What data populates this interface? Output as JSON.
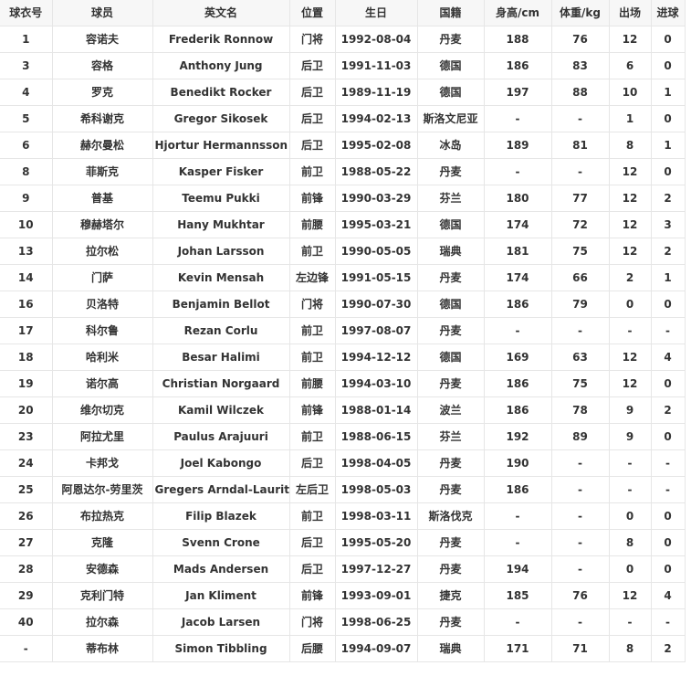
{
  "colors": {
    "page_background": "#ffffff",
    "header_background": "#f7f7f7",
    "border": "#e6e6e6",
    "text": "#333333"
  },
  "roster_table": {
    "headers": [
      "球衣号",
      "球员",
      "英文名",
      "位置",
      "生日",
      "国籍",
      "身高/cm",
      "体重/kg",
      "出场",
      "进球"
    ],
    "rows": [
      [
        "1",
        "容诺夫",
        "Frederik Ronnow",
        "门将",
        "1992-08-04",
        "丹麦",
        "188",
        "76",
        "12",
        "0"
      ],
      [
        "3",
        "容格",
        "Anthony Jung",
        "后卫",
        "1991-11-03",
        "德国",
        "186",
        "83",
        "6",
        "0"
      ],
      [
        "4",
        "罗克",
        "Benedikt Rocker",
        "后卫",
        "1989-11-19",
        "德国",
        "197",
        "88",
        "10",
        "1"
      ],
      [
        "5",
        "希科谢克",
        "Gregor Sikosek",
        "后卫",
        "1994-02-13",
        "斯洛文尼亚",
        "-",
        "-",
        "1",
        "0"
      ],
      [
        "6",
        "赫尔曼松",
        "Hjortur Hermannsson",
        "后卫",
        "1995-02-08",
        "冰岛",
        "189",
        "81",
        "8",
        "1"
      ],
      [
        "8",
        "菲斯克",
        "Kasper Fisker",
        "前卫",
        "1988-05-22",
        "丹麦",
        "-",
        "-",
        "12",
        "0"
      ],
      [
        "9",
        "普基",
        "Teemu Pukki",
        "前锋",
        "1990-03-29",
        "芬兰",
        "180",
        "77",
        "12",
        "2"
      ],
      [
        "10",
        "穆赫塔尔",
        "Hany Mukhtar",
        "前腰",
        "1995-03-21",
        "德国",
        "174",
        "72",
        "12",
        "3"
      ],
      [
        "13",
        "拉尔松",
        "Johan Larsson",
        "前卫",
        "1990-05-05",
        "瑞典",
        "181",
        "75",
        "12",
        "2"
      ],
      [
        "14",
        "门萨",
        "Kevin Mensah",
        "左边锋",
        "1991-05-15",
        "丹麦",
        "174",
        "66",
        "2",
        "1"
      ],
      [
        "16",
        "贝洛特",
        "Benjamin Bellot",
        "门将",
        "1990-07-30",
        "德国",
        "186",
        "79",
        "0",
        "0"
      ],
      [
        "17",
        "科尔鲁",
        "Rezan Corlu",
        "前卫",
        "1997-08-07",
        "丹麦",
        "-",
        "-",
        "-",
        "-"
      ],
      [
        "18",
        "哈利米",
        "Besar Halimi",
        "前卫",
        "1994-12-12",
        "德国",
        "169",
        "63",
        "12",
        "4"
      ],
      [
        "19",
        "诺尔高",
        "Christian Norgaard",
        "前腰",
        "1994-03-10",
        "丹麦",
        "186",
        "75",
        "12",
        "0"
      ],
      [
        "20",
        "维尔切克",
        "Kamil Wilczek",
        "前锋",
        "1988-01-14",
        "波兰",
        "186",
        "78",
        "9",
        "2"
      ],
      [
        "23",
        "阿拉尤里",
        "Paulus Arajuuri",
        "前卫",
        "1988-06-15",
        "芬兰",
        "192",
        "89",
        "9",
        "0"
      ],
      [
        "24",
        "卡邦戈",
        "Joel Kabongo",
        "后卫",
        "1998-04-05",
        "丹麦",
        "190",
        "-",
        "-",
        "-"
      ],
      [
        "25",
        "阿恩达尔-劳里茨",
        "Gregers Arndal-Lauritz",
        "左后卫",
        "1998-05-03",
        "丹麦",
        "186",
        "-",
        "-",
        "-"
      ],
      [
        "26",
        "布拉热克",
        "Filip Blazek",
        "前卫",
        "1998-03-11",
        "斯洛伐克",
        "-",
        "-",
        "0",
        "0"
      ],
      [
        "27",
        "克隆",
        "Svenn Crone",
        "后卫",
        "1995-05-20",
        "丹麦",
        "-",
        "-",
        "8",
        "0"
      ],
      [
        "28",
        "安德森",
        "Mads Andersen",
        "后卫",
        "1997-12-27",
        "丹麦",
        "194",
        "-",
        "0",
        "0"
      ],
      [
        "29",
        "克利门特",
        "Jan Kliment",
        "前锋",
        "1993-09-01",
        "捷克",
        "185",
        "76",
        "12",
        "4"
      ],
      [
        "40",
        "拉尔森",
        "Jacob Larsen",
        "门将",
        "1998-06-25",
        "丹麦",
        "-",
        "-",
        "-",
        "-"
      ],
      [
        "-",
        "蒂布林",
        "Simon Tibbling",
        "后腰",
        "1994-09-07",
        "瑞典",
        "171",
        "71",
        "8",
        "2"
      ]
    ]
  }
}
